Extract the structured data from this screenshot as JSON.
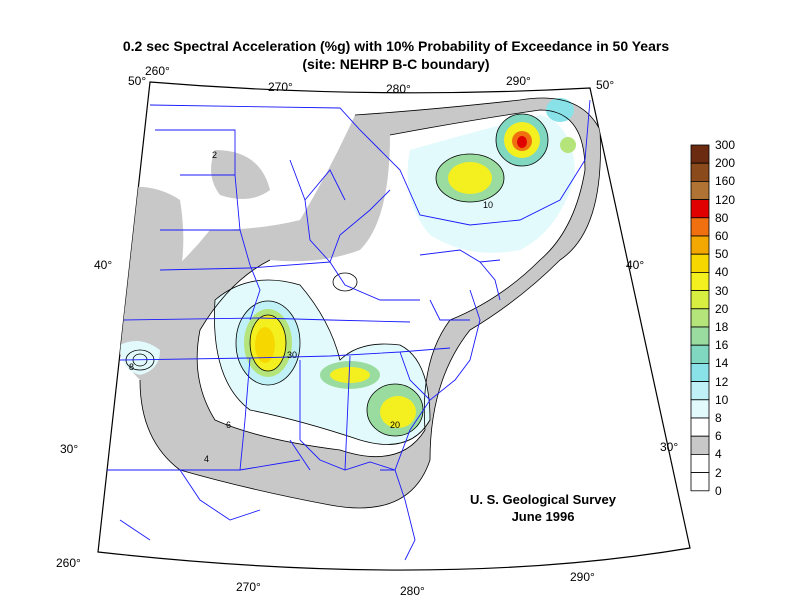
{
  "title_line1": "0.2 sec Spectral Acceleration (%g) with 10% Probability of Exceedance in 50 Years",
  "title_line2": "(site: NEHRP B-C boundary)",
  "credit_line1": "U. S. Geological Survey",
  "credit_line2": "June 1996",
  "longitude_labels_top": [
    "260°",
    "270°",
    "280°",
    "290°"
  ],
  "longitude_labels_bottom": [
    "260°",
    "270°",
    "280°",
    "290°"
  ],
  "latitude_labels_left": [
    "50°",
    "40°",
    "30°"
  ],
  "latitude_labels_right": [
    "50°",
    "40°",
    "30°"
  ],
  "legend": {
    "levels": [
      "300",
      "200",
      "160",
      "120",
      "80",
      "60",
      "50",
      "40",
      "30",
      "20",
      "18",
      "16",
      "14",
      "12",
      "10",
      "8",
      "6",
      "4",
      "2",
      "0"
    ],
    "colors": [
      "#6b2b10",
      "#8a4a1c",
      "#b07333",
      "#e00000",
      "#f07010",
      "#f2a800",
      "#f6d800",
      "#f4f020",
      "#d8ee40",
      "#b4e47a",
      "#9adca0",
      "#80d8c0",
      "#88e2e8",
      "#bff1f6",
      "#e2fafc",
      "#ffffff",
      "#c8c8c8",
      "#ffffff",
      "#ffffff"
    ]
  },
  "contour_labels": [
    "2",
    "4",
    "6",
    "8",
    "10",
    "20",
    "30"
  ],
  "colors": {
    "boundary": "#1a1aff",
    "contour": "#000000",
    "gray_band": "#c8c8c8"
  }
}
